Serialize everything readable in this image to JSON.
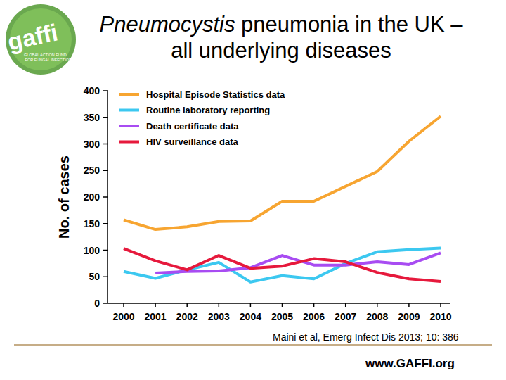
{
  "chart_data": {
    "type": "line",
    "title": "Pneumocystis pneumonia in the UK – all underlying diseases",
    "y_label": "No. of cases",
    "categories": [
      "2000",
      "2001",
      "2002",
      "2003",
      "2004",
      "2005",
      "2006",
      "2007",
      "2008",
      "2009",
      "2010"
    ],
    "series": [
      {
        "name": "Hospital Episode Statistics data",
        "color": "#f7a531",
        "values": [
          157,
          139,
          144,
          154,
          155,
          192,
          192,
          220,
          248,
          305,
          352
        ]
      },
      {
        "name": "Routine laboratory reporting",
        "color": "#3cc8f0",
        "values": [
          60,
          47,
          63,
          77,
          40,
          52,
          46,
          75,
          97,
          101,
          104
        ]
      },
      {
        "name": "Death certificate data",
        "color": "#a84cf2",
        "values": [
          null,
          57,
          60,
          61,
          67,
          90,
          72,
          72,
          78,
          73,
          95
        ]
      },
      {
        "name": "HIV surveillance data",
        "color": "#e6193c",
        "values": [
          103,
          80,
          63,
          90,
          66,
          70,
          84,
          78,
          58,
          46,
          41
        ]
      }
    ],
    "ylim": [
      0,
      400
    ],
    "yticks": [
      0,
      50,
      100,
      150,
      200,
      250,
      300,
      350,
      400
    ],
    "grid": false,
    "legend": "top-left",
    "annotations": [
      "gaffi",
      "GLOBAL ACTION FUND FOR FUNGAL INFECTIONS",
      "Maini et al, Emerg Infect Dis 2013; 10: 386",
      "www.GAFFI.org"
    ]
  }
}
